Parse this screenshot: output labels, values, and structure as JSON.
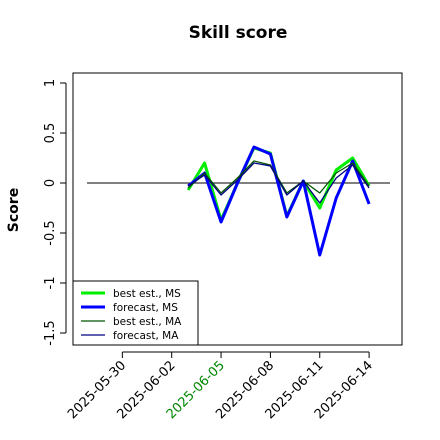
{
  "chart_data": {
    "type": "line",
    "title": "Skill score",
    "y_label": "Score",
    "x": [
      "2025-06-03",
      "2025-06-04",
      "2025-06-05",
      "2025-06-06",
      "2025-06-07",
      "2025-06-08",
      "2025-06-09",
      "2025-06-10",
      "2025-06-11",
      "2025-06-12",
      "2025-06-13",
      "2025-06-14"
    ],
    "series": [
      {
        "name": "best est., MS",
        "color": "#00ee00",
        "width": 3,
        "values": [
          -0.07,
          0.2,
          -0.37,
          0.0,
          0.35,
          0.3,
          -0.33,
          0.02,
          -0.25,
          0.13,
          0.25,
          -0.03
        ]
      },
      {
        "name": "forecast, MS",
        "color": "#0000ff",
        "width": 3,
        "values": [
          -0.03,
          0.1,
          -0.39,
          0.0,
          0.36,
          0.29,
          -0.34,
          0.02,
          -0.72,
          -0.15,
          0.22,
          -0.21
        ]
      },
      {
        "name": "best est., MA",
        "color": "#005500",
        "width": 1.3,
        "values": [
          -0.05,
          0.1,
          -0.1,
          0.05,
          0.22,
          0.18,
          -0.1,
          0.02,
          -0.1,
          0.1,
          0.2,
          -0.03
        ]
      },
      {
        "name": "forecast, MA",
        "color": "#000080",
        "width": 1.3,
        "values": [
          -0.03,
          0.08,
          -0.12,
          0.03,
          0.2,
          0.17,
          -0.12,
          0.02,
          -0.2,
          0.05,
          0.18,
          -0.05
        ]
      }
    ],
    "xlim": [
      "2025-05-27",
      "2025-06-16"
    ],
    "xticks": [
      "2025-05-30",
      "2025-06-02",
      "2025-06-05",
      "2025-06-08",
      "2025-06-11",
      "2025-06-14"
    ],
    "xtick_label_colors": [
      "#000000",
      "#000000",
      "#008800",
      "#000000",
      "#000000",
      "#000000"
    ],
    "ylim": [
      -1.62,
      1.1
    ],
    "yticks": [
      -1.5,
      -1.0,
      -0.5,
      0.0,
      0.5,
      1.0
    ],
    "hline": 0,
    "legend": "bottom-left"
  }
}
